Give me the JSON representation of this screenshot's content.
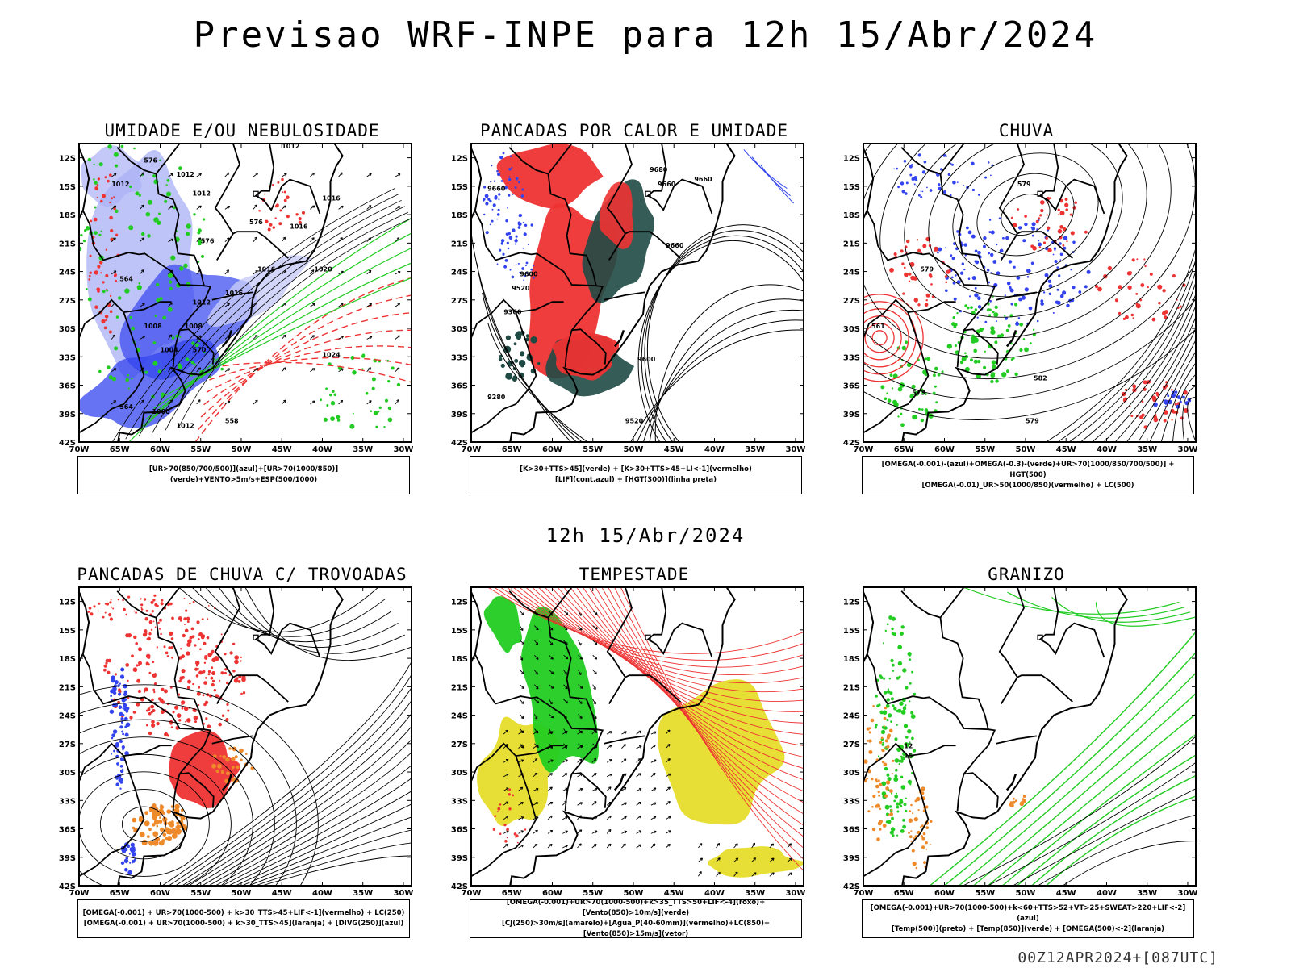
{
  "title": "Previsao WRF-INPE  para 12h 15/Abr/2024",
  "mid_title": "12h 15/Abr/2024",
  "footer": "00Z12APR2024+[087UTC]",
  "lat_labels": [
    "12S",
    "15S",
    "18S",
    "21S",
    "24S",
    "27S",
    "30S",
    "33S",
    "36S",
    "39S",
    "42S"
  ],
  "lon_labels": [
    "70W",
    "65W",
    "60W",
    "55W",
    "50W",
    "45W",
    "40W",
    "35W",
    "30W"
  ],
  "colors": {
    "blue": "#3344ee",
    "lightblue": "#aab0f5",
    "green": "#22cc22",
    "red": "#ee3333",
    "darkteal": "#1f4a44",
    "yellow": "#e6dd2a",
    "orange": "#ee8a2a"
  },
  "panels": [
    {
      "title": "UMIDADE E/OU NEBULOSIDADE",
      "caption": [
        "[UR>70(850/700/500)](azul)+[UR>70(1000/850)](verde)+VENTO>5m/s+ESP(500/1000)"
      ],
      "labels": [
        "1012",
        "1012",
        "1012",
        "1012",
        "1016",
        "1016",
        "1016",
        "1020",
        "1012",
        "1016",
        "1008",
        "1008",
        "1004",
        "1024",
        "1000",
        "1012",
        "576",
        "576",
        "570",
        "564",
        "576",
        "558",
        "564"
      ]
    },
    {
      "title": "PANCADAS POR CALOR E UMIDADE",
      "caption": [
        "[K>30+TTS>45](verde)  +  [K>30+TTS>45+LI<-1](vermelho)",
        "[LIF](cont.azul)  +  [HGT(300)](linha preta)"
      ],
      "labels": [
        "9660",
        "9680",
        "9660",
        "9660",
        "9660",
        "9600",
        "9520",
        "9360",
        "9600",
        "9280",
        "9520"
      ]
    },
    {
      "title": "CHUVA",
      "caption": [
        "[OMEGA(-0.001)-(azul)+OMEGA(-0.3)-(verde)+UR>70(1000/850/700/500)]  +  HGT(500)",
        "[OMEGA(-0.01)_UR>50(1000/850)(vermelho)  +  LC(500)"
      ],
      "labels": [
        "579",
        "579",
        "561",
        "573",
        "582",
        "579"
      ]
    },
    {
      "title": "PANCADAS DE CHUVA C/ TROVOADAS",
      "caption": [
        "[OMEGA(-0.001)  +  UR>70(1000-500)  +  k>30_TTS>45+LIF<-1](vermelho)  +  LC(250)",
        "[OMEGA(-0.001)  +  UR>70(1000-500)  +  k>30_TTS>45](laranja)  +  [DIVG(250)](azul)"
      ],
      "labels": []
    },
    {
      "title": "TEMPESTADE",
      "caption": [
        "[OMEGA(-0.001)+UR>70(1000-500)+k>35_TTS>50+LIF<-4](roxo)+[Vento(850)>10m/s](verde)",
        "[CJ(250)>30m/s](amarelo)+[Agua_P(40-60mm)](vermelho)+LC(850)+[Vento(850)>15m/s](vetor)"
      ],
      "labels": []
    },
    {
      "title": "GRANIZO",
      "caption": [
        "[OMEGA(-0.001)+UR>70(1000-500)+k<60+TTS>52+VT>25+SWEAT>220+LIF<-2](azul)",
        "[Temp(500)](preto)  +  [Temp(850)](verde)  +  [OMEGA(500)<-2](laranja)"
      ],
      "labels": [
        "12",
        "15"
      ]
    }
  ]
}
